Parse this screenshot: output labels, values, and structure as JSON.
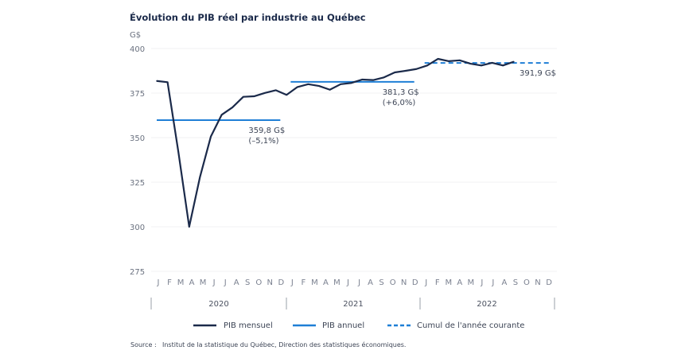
{
  "chart_data": {
    "type": "line",
    "title": "Évolution du PIB réel par industrie au Québec",
    "ylabel": "G$",
    "ylim": [
      275,
      400
    ],
    "yticks": [
      275,
      300,
      325,
      350,
      375,
      400
    ],
    "grid": true,
    "month_labels": [
      "J",
      "F",
      "M",
      "A",
      "M",
      "J",
      "J",
      "A",
      "S",
      "O",
      "N",
      "D",
      "J",
      "F",
      "M",
      "A",
      "M",
      "J",
      "J",
      "A",
      "S",
      "O",
      "N",
      "D",
      "J",
      "F",
      "M",
      "A",
      "M",
      "J",
      "J",
      "A",
      "S",
      "O",
      "N",
      "D"
    ],
    "years": [
      "2020",
      "2021",
      "2022"
    ],
    "series": [
      {
        "name": "PIB mensuel",
        "color": "#1b2a4a",
        "style": "solid",
        "values": [
          381.8,
          381.1,
          342,
          300,
          328,
          350.6,
          362.8,
          367,
          372.9,
          373.2,
          375.1,
          376.6,
          374,
          378.4,
          380,
          379,
          376.9,
          380,
          380.7,
          382.6,
          382.3,
          383.8,
          386.6,
          387.5,
          388.5,
          390.5,
          394.2,
          392.9,
          393.4,
          391.5,
          390.5,
          392,
          390.5,
          392.6
        ]
      },
      {
        "name": "PIB annuel",
        "color": "#1f7fd6",
        "style": "solid",
        "segments": [
          {
            "year": "2020",
            "value": 359.8,
            "label": "359,8 G$",
            "change": "(–5,1%)"
          },
          {
            "year": "2021",
            "value": 381.3,
            "label": "381,3 G$",
            "change": "(+6,0%)"
          }
        ]
      },
      {
        "name": "Cumul de l'année courante",
        "color": "#1f7fd6",
        "style": "dashed",
        "segments": [
          {
            "year": "2022",
            "value": 391.9,
            "label": "391,9 G$"
          }
        ]
      }
    ],
    "legend_position": "bottom",
    "source_label": "Source :",
    "source_text": "Institut de la statistique du Québec, Direction des statistiques économiques."
  }
}
